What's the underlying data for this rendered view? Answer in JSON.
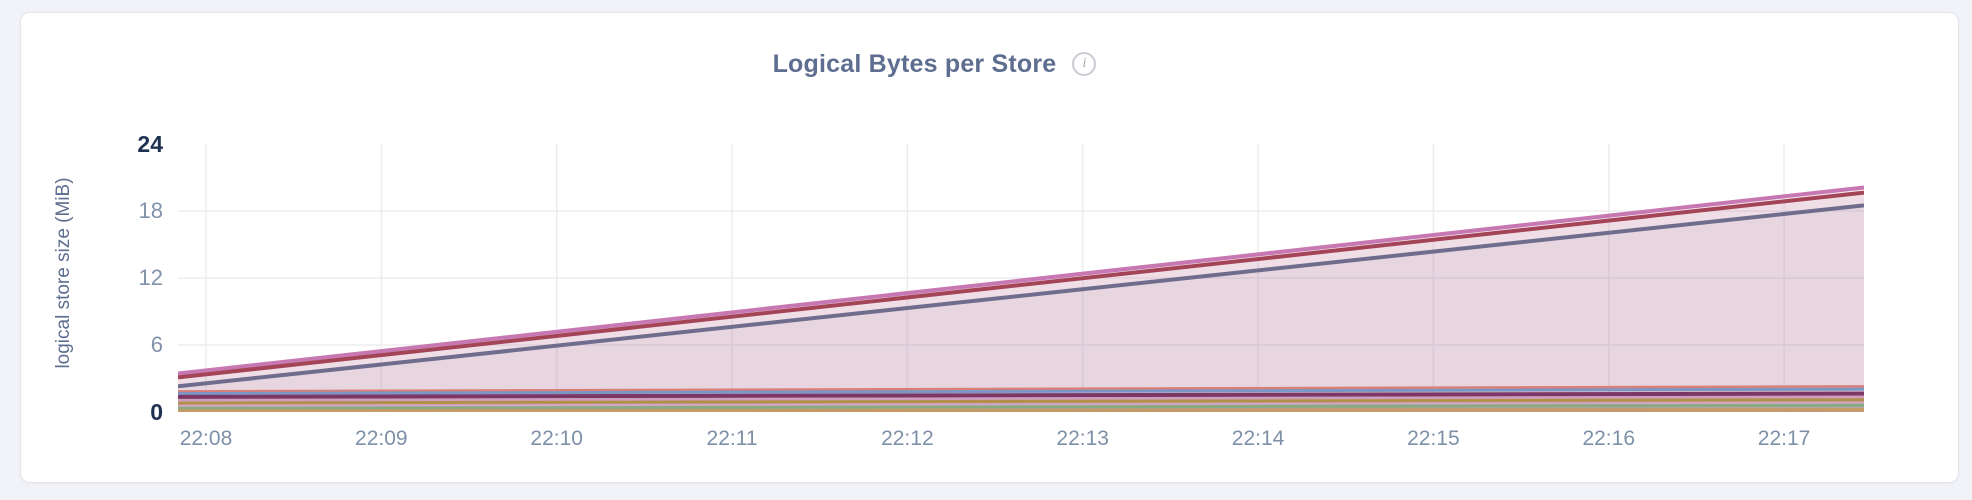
{
  "header": {
    "info_icon_glyph": "i"
  },
  "colors": {
    "page_bg": "#f1f3f8",
    "card_bg": "#ffffff",
    "card_border": "#e4e5ea",
    "title": "#5e6e90",
    "axis_label": "#5e6e90",
    "tick": "#8292aa",
    "tick_bold": "#1e3150",
    "grid": "#ededf0"
  },
  "chart_data": {
    "type": "area",
    "title": "Logical Bytes per Store",
    "xlabel": "",
    "ylabel": "logical store size (MiB)",
    "ylim": [
      0,
      24
    ],
    "grid": true,
    "legend": "none",
    "y_ticks": [
      {
        "label": "24",
        "value": 24,
        "bold": true
      },
      {
        "label": "18",
        "value": 18,
        "bold": false
      },
      {
        "label": "12",
        "value": 12,
        "bold": false
      },
      {
        "label": "6",
        "value": 6,
        "bold": false
      },
      {
        "label": "0",
        "value": 0,
        "bold": true
      }
    ],
    "grid_y_values": [
      18,
      12,
      6
    ],
    "x_ticks": [
      "22:08",
      "22:09",
      "22:10",
      "22:11",
      "22:12",
      "22:13",
      "22:14",
      "22:15",
      "22:16",
      "22:17"
    ],
    "x_tick_start_frac": 0.0166,
    "x_tick_step_frac": 0.104,
    "x_axis_note": "time ticks every 1 minute; data spans slightly beyond ticks on both sides",
    "series": [
      {
        "id": "s1",
        "color": "#c777b1",
        "width": 4,
        "fill_opacity": 0.14,
        "y_start_mib": 3.45,
        "y_end_mib": 20.1
      },
      {
        "id": "s2",
        "color": "#a44457",
        "width": 4,
        "fill_opacity": 0.08,
        "y_start_mib": 3.1,
        "y_end_mib": 19.65
      },
      {
        "id": "s3",
        "color": "#6f6d8d",
        "width": 4,
        "fill_opacity": 0.07,
        "y_start_mib": 2.3,
        "y_end_mib": 18.5
      },
      {
        "id": "s4",
        "color": "#d97f78",
        "width": 2.5,
        "fill_opacity": 0.15,
        "y_start_mib": 1.85,
        "y_end_mib": 2.3
      },
      {
        "id": "s5",
        "color": "#7b95c4",
        "width": 3,
        "fill_opacity": 0.15,
        "y_start_mib": 1.65,
        "y_end_mib": 2.05
      },
      {
        "id": "s6",
        "color": "#7c3766",
        "width": 4,
        "fill_opacity": 0.15,
        "y_start_mib": 1.35,
        "y_end_mib": 1.65
      },
      {
        "id": "s7",
        "color": "#cf9dbd",
        "width": 2.5,
        "fill_opacity": 0.15,
        "y_start_mib": 1.05,
        "y_end_mib": 1.35
      },
      {
        "id": "s8",
        "color": "#b2904a",
        "width": 3,
        "fill_opacity": 0.15,
        "y_start_mib": 0.8,
        "y_end_mib": 1.1
      },
      {
        "id": "s9",
        "color": "#d2a5c2",
        "width": 2.5,
        "fill_opacity": 0.15,
        "y_start_mib": 0.55,
        "y_end_mib": 0.8
      },
      {
        "id": "s10",
        "color": "#86ab81",
        "width": 3,
        "fill_opacity": 0.15,
        "y_start_mib": 0.32,
        "y_end_mib": 0.6
      },
      {
        "id": "s11",
        "color": "#c49a66",
        "width": 3.5,
        "fill_opacity": 0.15,
        "y_start_mib": 0.1,
        "y_end_mib": 0.2
      }
    ]
  }
}
